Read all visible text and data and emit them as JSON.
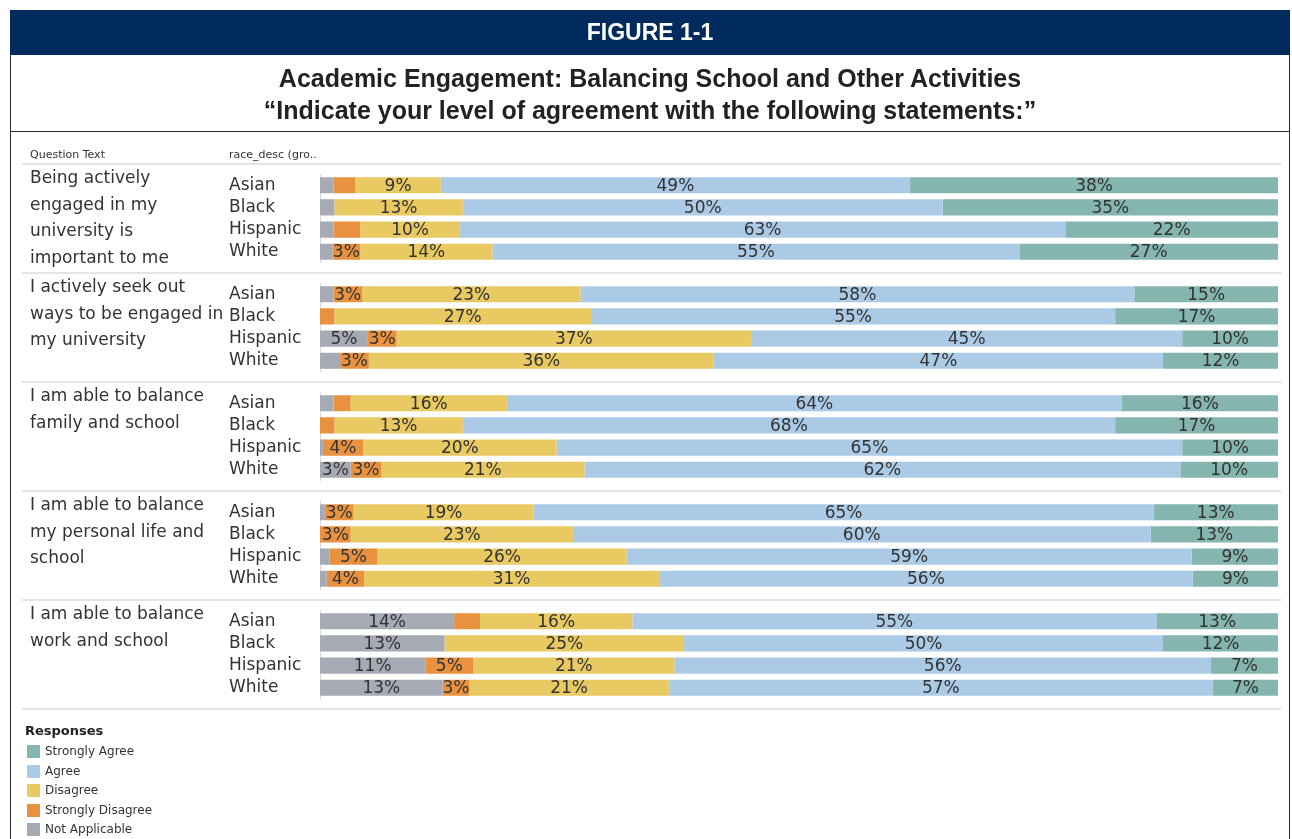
{
  "chart_data": [
    {
      "type": "bar",
      "orientation": "horizontal",
      "stacked": true,
      "title": "Academic Engagement: Balancing School and Other Activities",
      "subtitle": "“Indicate your level of agreement with the following statements:”",
      "annotations": [
        "FIGURE 1-1",
        "Question Text",
        "race_desc (gro.."
      ],
      "ylabel": "Being actively engaged in my university is\nimportant to me",
      "categories": [
        "Asian",
        "Black",
        "Hispanic",
        "White"
      ],
      "series": [
        {
          "color": "#a5aab4",
          "values": [
            1.4,
            1.5,
            1.4,
            1.3
          ],
          "value_labels": [
            null,
            null,
            null,
            null
          ]
        },
        {
          "color": "#e8923f",
          "values": [
            2.3,
            null,
            2.8,
            2.9
          ],
          "value_labels": [
            null,
            null,
            null,
            "3%"
          ]
        },
        {
          "color": "#e8c962",
          "values": [
            8.9,
            13.4,
            10.4,
            13.8
          ],
          "value_labels": [
            "9%",
            "13%",
            "10%",
            "14%"
          ]
        },
        {
          "color": "#abcae6",
          "values": [
            49.0,
            50.1,
            63.2,
            55
          ],
          "value_labels": [
            "49%",
            "50%",
            "63%",
            "55%"
          ]
        },
        {
          "color": "#84b5af",
          "values": [
            38.4,
            35,
            22.2,
            27
          ],
          "value_labels": [
            "38%",
            "35%",
            "22%",
            "27%"
          ]
        }
      ],
      "tick_labels": "y"
    },
    {
      "type": "bar",
      "orientation": "horizontal",
      "stacked": true,
      "ylabel": "I actively seek out ways to be engaged in my university",
      "categories": [
        "Asian",
        "Black",
        "Hispanic",
        "White"
      ],
      "series": [
        {
          "color": "#a5aab4",
          "values": [
            1.4,
            null,
            5,
            2.1
          ],
          "value_labels": [
            null,
            null,
            "5%",
            null
          ]
        },
        {
          "color": "#e8923f",
          "values": [
            3,
            1.5,
            3,
            3
          ],
          "value_labels": [
            "3%",
            null,
            "3%",
            "3%"
          ]
        },
        {
          "color": "#e8c962",
          "values": [
            22.8,
            26.8,
            37,
            36
          ],
          "value_labels": [
            "23%",
            "27%",
            "37%",
            "36%"
          ]
        },
        {
          "color": "#abcae6",
          "values": [
            57.8,
            54.7,
            45,
            46.9
          ],
          "value_labels": [
            "58%",
            "55%",
            "45%",
            "47%"
          ]
        },
        {
          "color": "#84b5af",
          "values": [
            15,
            17,
            10,
            12
          ],
          "value_labels": [
            "15%",
            "17%",
            "10%",
            "12%"
          ]
        }
      ],
      "tick_labels": "y"
    },
    {
      "type": "bar",
      "orientation": "horizontal",
      "stacked": true,
      "ylabel": "I am able to balance family and school",
      "categories": [
        "Asian",
        "Black",
        "Hispanic",
        "White"
      ],
      "series": [
        {
          "color": "#a5aab4",
          "values": [
            1.4,
            null,
            0.3,
            3.2
          ],
          "value_labels": [
            null,
            null,
            null,
            "3%"
          ]
        },
        {
          "color": "#e8923f",
          "values": [
            1.8,
            1.5,
            4.2,
            3.2
          ],
          "value_labels": [
            null,
            null,
            "4%",
            "3%"
          ]
        },
        {
          "color": "#e8c962",
          "values": [
            16.3,
            13.4,
            20.2,
            21.2
          ],
          "value_labels": [
            "16%",
            "13%",
            "20%",
            "21%"
          ]
        },
        {
          "color": "#abcae6",
          "values": [
            64.2,
            68.1,
            65.3,
            62.2
          ],
          "value_labels": [
            "64%",
            "68%",
            "65%",
            "62%"
          ]
        },
        {
          "color": "#84b5af",
          "values": [
            16.3,
            17,
            10,
            10.2
          ],
          "value_labels": [
            "16%",
            "17%",
            "10%",
            "10%"
          ]
        }
      ],
      "tick_labels": "y"
    },
    {
      "type": "bar",
      "orientation": "horizontal",
      "stacked": true,
      "ylabel": "I am able to balance my personal life and school",
      "categories": [
        "Asian",
        "Black",
        "Hispanic",
        "White"
      ],
      "series": [
        {
          "color": "#a5aab4",
          "values": [
            0.5,
            null,
            1,
            0.7
          ],
          "value_labels": [
            null,
            null,
            null,
            null
          ]
        },
        {
          "color": "#e8923f",
          "values": [
            3,
            3.2,
            5,
            3.9
          ],
          "value_labels": [
            "3%",
            "3%",
            "5%",
            "4%"
          ]
        },
        {
          "color": "#e8c962",
          "values": [
            18.8,
            23.2,
            26,
            30.8
          ],
          "value_labels": [
            "19%",
            "23%",
            "26%",
            "31%"
          ]
        },
        {
          "color": "#abcae6",
          "values": [
            64.7,
            60.3,
            59,
            55.7
          ],
          "value_labels": [
            "65%",
            "60%",
            "59%",
            "56%"
          ]
        },
        {
          "color": "#84b5af",
          "values": [
            13,
            13.3,
            9,
            8.9
          ],
          "value_labels": [
            "13%",
            "13%",
            "9%",
            "9%"
          ]
        }
      ],
      "tick_labels": "y"
    },
    {
      "type": "bar",
      "orientation": "horizontal",
      "stacked": true,
      "ylabel": "I am able to balance work and school",
      "categories": [
        "Asian",
        "Black",
        "Hispanic",
        "White"
      ],
      "series": [
        {
          "name": "Not Applicable",
          "color": "#a5aab4",
          "values": [
            14,
            13,
            11,
            12.8
          ],
          "value_labels": [
            "14%",
            "13%",
            "11%",
            "13%"
          ]
        },
        {
          "name": "Strongly Disagree",
          "color": "#e8923f",
          "values": [
            2.7,
            null,
            5,
            2.8
          ],
          "value_labels": [
            null,
            null,
            "5%",
            "3%"
          ]
        },
        {
          "name": "Disagree",
          "color": "#e8c962",
          "values": [
            15.9,
            25,
            21,
            20.8
          ],
          "value_labels": [
            "16%",
            "25%",
            "21%",
            "21%"
          ]
        },
        {
          "name": "Agree",
          "color": "#abcae6",
          "values": [
            54.7,
            50,
            56,
            56.8
          ],
          "value_labels": [
            "55%",
            "50%",
            "56%",
            "57%"
          ]
        },
        {
          "name": "Strongly Agree",
          "color": "#84b5af",
          "values": [
            12.7,
            12,
            7,
            6.8
          ],
          "value_labels": [
            "13%",
            "12%",
            "7%",
            "7%"
          ]
        }
      ],
      "tick_labels": "y",
      "legend": "bottom left",
      "legend_title": "Responses"
    }
  ]
}
